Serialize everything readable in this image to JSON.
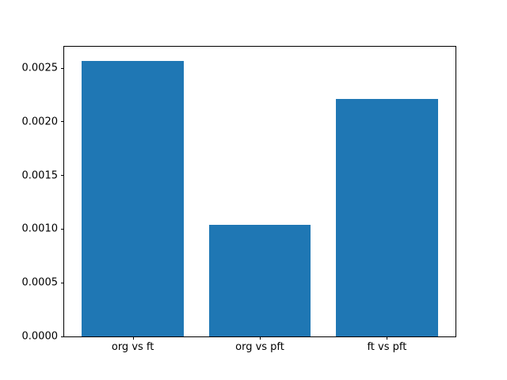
{
  "figure": {
    "background": "#ffffff",
    "spine_color": "#000000",
    "tick_label_color": "#000000"
  },
  "chart_data": {
    "type": "bar",
    "categories": [
      "org vs ft",
      "org vs pft",
      "ft vs pft"
    ],
    "values": [
      0.00257,
      0.00104,
      0.00221
    ],
    "title": "",
    "xlabel": "",
    "ylabel": "",
    "ylim": [
      0,
      0.0027
    ],
    "xlim": [
      -0.54,
      2.54
    ],
    "x_positions": [
      0,
      1,
      2
    ],
    "bar_width": 0.8,
    "bar_color": "#1f77b4",
    "yticks": [
      {
        "value": 0.0,
        "label": "0.0000"
      },
      {
        "value": 0.0005,
        "label": "0.0005"
      },
      {
        "value": 0.001,
        "label": "0.0010"
      },
      {
        "value": 0.0015,
        "label": "0.0015"
      },
      {
        "value": 0.002,
        "label": "0.0020"
      },
      {
        "value": 0.0025,
        "label": "0.0025"
      }
    ],
    "grid": false,
    "legend": "none"
  }
}
